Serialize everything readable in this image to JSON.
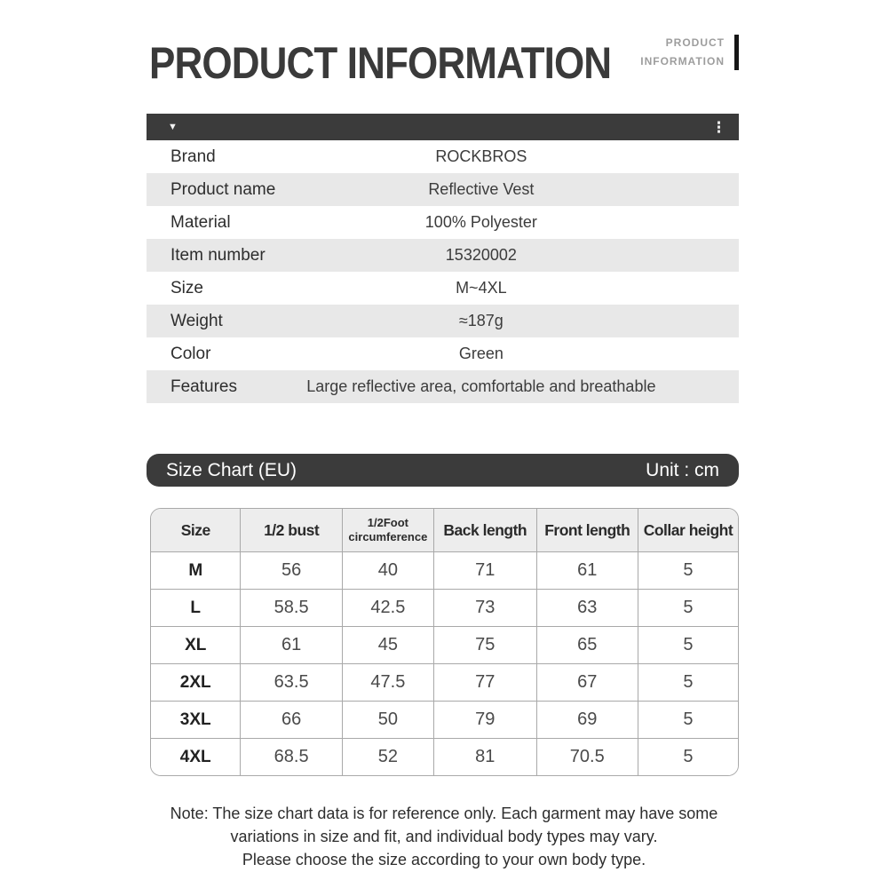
{
  "page": {
    "title": "PRODUCT INFORMATION",
    "mini_title_line1": "PRODUCT",
    "mini_title_line2": "INFORMATION"
  },
  "product_info": {
    "dropdown_glyph": "▼",
    "menu_glyph": "⋮",
    "rows": [
      {
        "label": "Brand",
        "value": "ROCKBROS"
      },
      {
        "label": "Product name",
        "value": "Reflective Vest"
      },
      {
        "label": "Material",
        "value": "100% Polyester"
      },
      {
        "label": "Item number",
        "value": "15320002"
      },
      {
        "label": "Size",
        "value": "M~4XL"
      },
      {
        "label": "Weight",
        "value": "≈187g"
      },
      {
        "label": "Color",
        "value": "Green"
      },
      {
        "label": "Features",
        "value": "Large reflective area, comfortable and breathable"
      }
    ]
  },
  "size_chart": {
    "title": "Size Chart (EU)",
    "unit": "Unit : cm",
    "columns": [
      "Size",
      "1/2 bust",
      "1/2Foot circumference",
      "Back length",
      "Front length",
      "Collar height"
    ],
    "rows": [
      [
        "M",
        "56",
        "40",
        "71",
        "61",
        "5"
      ],
      [
        "L",
        "58.5",
        "42.5",
        "73",
        "63",
        "5"
      ],
      [
        "XL",
        "61",
        "45",
        "75",
        "65",
        "5"
      ],
      [
        "2XL",
        "63.5",
        "47.5",
        "77",
        "67",
        "5"
      ],
      [
        "3XL",
        "66",
        "50",
        "79",
        "69",
        "5"
      ],
      [
        "4XL",
        "68.5",
        "52",
        "81",
        "70.5",
        "5"
      ]
    ]
  },
  "note": {
    "line1": "Note: The size chart data is for reference only. Each garment may have some",
    "line2": "variations in size and fit, and individual body types may vary.",
    "line3": "Please choose the size according to your own body type."
  },
  "colors": {
    "dark_bar": "#3b3b3b",
    "alt_row": "#e8e8e8",
    "table_border": "#a9a9a9",
    "table_header_bg": "#ededed",
    "title_text": "#3a3a3a",
    "mini_title_text": "#9d9d9d"
  }
}
